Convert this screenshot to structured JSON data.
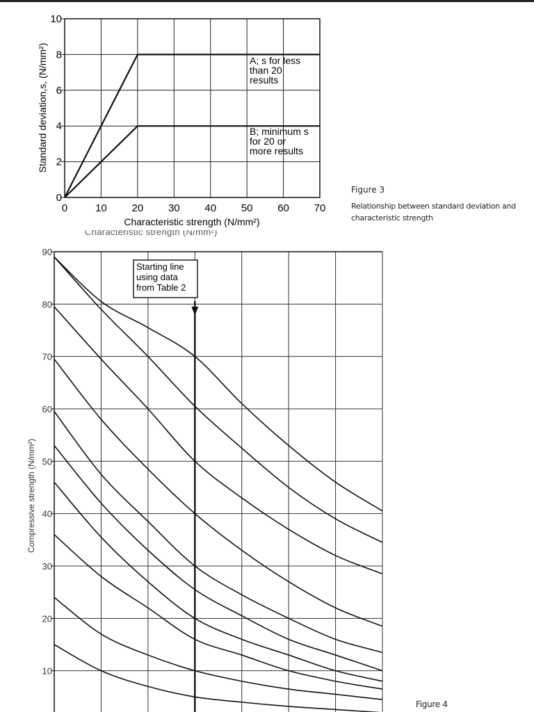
{
  "figure3": {
    "title": "Figure 3",
    "description": "Relationship between standard deviation and characteristic strength"
  },
  "figure4": {
    "title": "Figure 4"
  },
  "cut_off_label": "Characteristic strength (N/mm²)",
  "chart_data": [
    {
      "type": "line",
      "xlabel": "Characteristic strength (N/mm²)",
      "ylabel": "Standard deviation,s, (N/mm²)",
      "xlim": [
        0,
        70
      ],
      "ylim": [
        0,
        10
      ],
      "x_ticks": [
        0,
        10,
        20,
        30,
        40,
        50,
        60,
        70
      ],
      "y_ticks": [
        0,
        2,
        4,
        6,
        8,
        10
      ],
      "grid": true,
      "series": [
        {
          "name": "A; s for less than 20 results",
          "x": [
            0,
            20,
            70
          ],
          "y": [
            0,
            8,
            8
          ]
        },
        {
          "name": "B; minimum s for 20 or more results",
          "x": [
            0,
            20,
            70
          ],
          "y": [
            0,
            4,
            4
          ]
        }
      ],
      "annotations": [
        {
          "lines": [
            "A; s for less",
            "than 20",
            "results"
          ]
        },
        {
          "lines": [
            "B; minimum s",
            "for 20 or",
            "more results"
          ]
        }
      ]
    },
    {
      "type": "line",
      "ylabel": "Compressive strength (N/mm²)",
      "ylim": [
        0,
        90
      ],
      "y_ticks": [
        10,
        20,
        30,
        40,
        50,
        60,
        70,
        80,
        90
      ],
      "grid": true,
      "annotation": {
        "lines": [
          "Starting line",
          "using data",
          "from Table 2"
        ]
      },
      "starting_line_x": 3,
      "x": [
        0,
        1,
        2,
        3,
        4,
        5,
        6,
        7
      ],
      "series": [
        {
          "y": [
            89,
            80.5,
            75.5,
            70,
            61,
            53,
            46,
            40.5
          ]
        },
        {
          "y": [
            89,
            79,
            70,
            60.5,
            52.5,
            45,
            39,
            34.5
          ]
        },
        {
          "y": [
            79.5,
            69.5,
            60,
            50,
            43,
            37,
            32,
            28.5
          ]
        },
        {
          "y": [
            69.5,
            58,
            48.5,
            40,
            33,
            27,
            22,
            18.5
          ]
        },
        {
          "y": [
            59.5,
            47.5,
            38.5,
            30,
            24.5,
            20,
            16,
            13.5
          ]
        },
        {
          "y": [
            53,
            42,
            33,
            25.5,
            20.5,
            16,
            13,
            10
          ]
        },
        {
          "y": [
            46,
            35.5,
            27,
            20,
            16,
            13,
            10,
            8
          ]
        },
        {
          "y": [
            36,
            28,
            22,
            16,
            13,
            10,
            8,
            6.5
          ]
        },
        {
          "y": [
            24,
            17,
            13,
            10,
            8,
            6.5,
            5.5,
            4.5
          ]
        },
        {
          "y": [
            15,
            10,
            7,
            5,
            4,
            3.2,
            2.6,
            2
          ]
        }
      ]
    }
  ]
}
